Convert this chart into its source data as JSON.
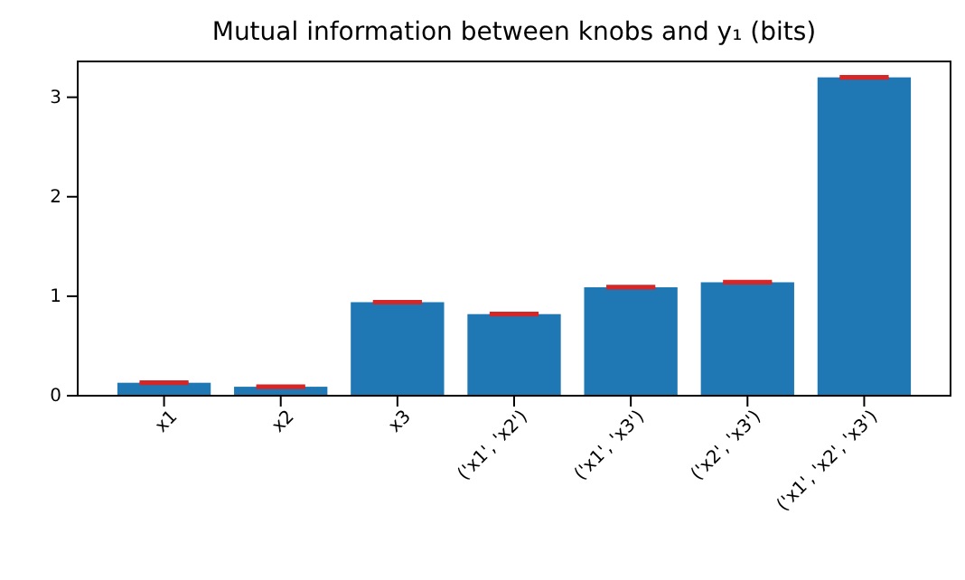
{
  "chart_data": {
    "type": "bar",
    "title": "Mutual information between knobs and y₁ (bits)",
    "categories": [
      "x1",
      "x2",
      "x3",
      "('x1', 'x2')",
      "('x1', 'x3')",
      "('x2', 'x3')",
      "('x1', 'x2', 'x3')"
    ],
    "values": [
      0.13,
      0.09,
      0.94,
      0.82,
      1.09,
      1.14,
      3.2
    ],
    "errors": [
      0.01,
      0.01,
      0.01,
      0.01,
      0.01,
      0.01,
      0.01
    ],
    "color": "#1f77b4",
    "ylim": [
      0,
      3.36
    ],
    "yticks": [
      0,
      1,
      2,
      3
    ]
  }
}
